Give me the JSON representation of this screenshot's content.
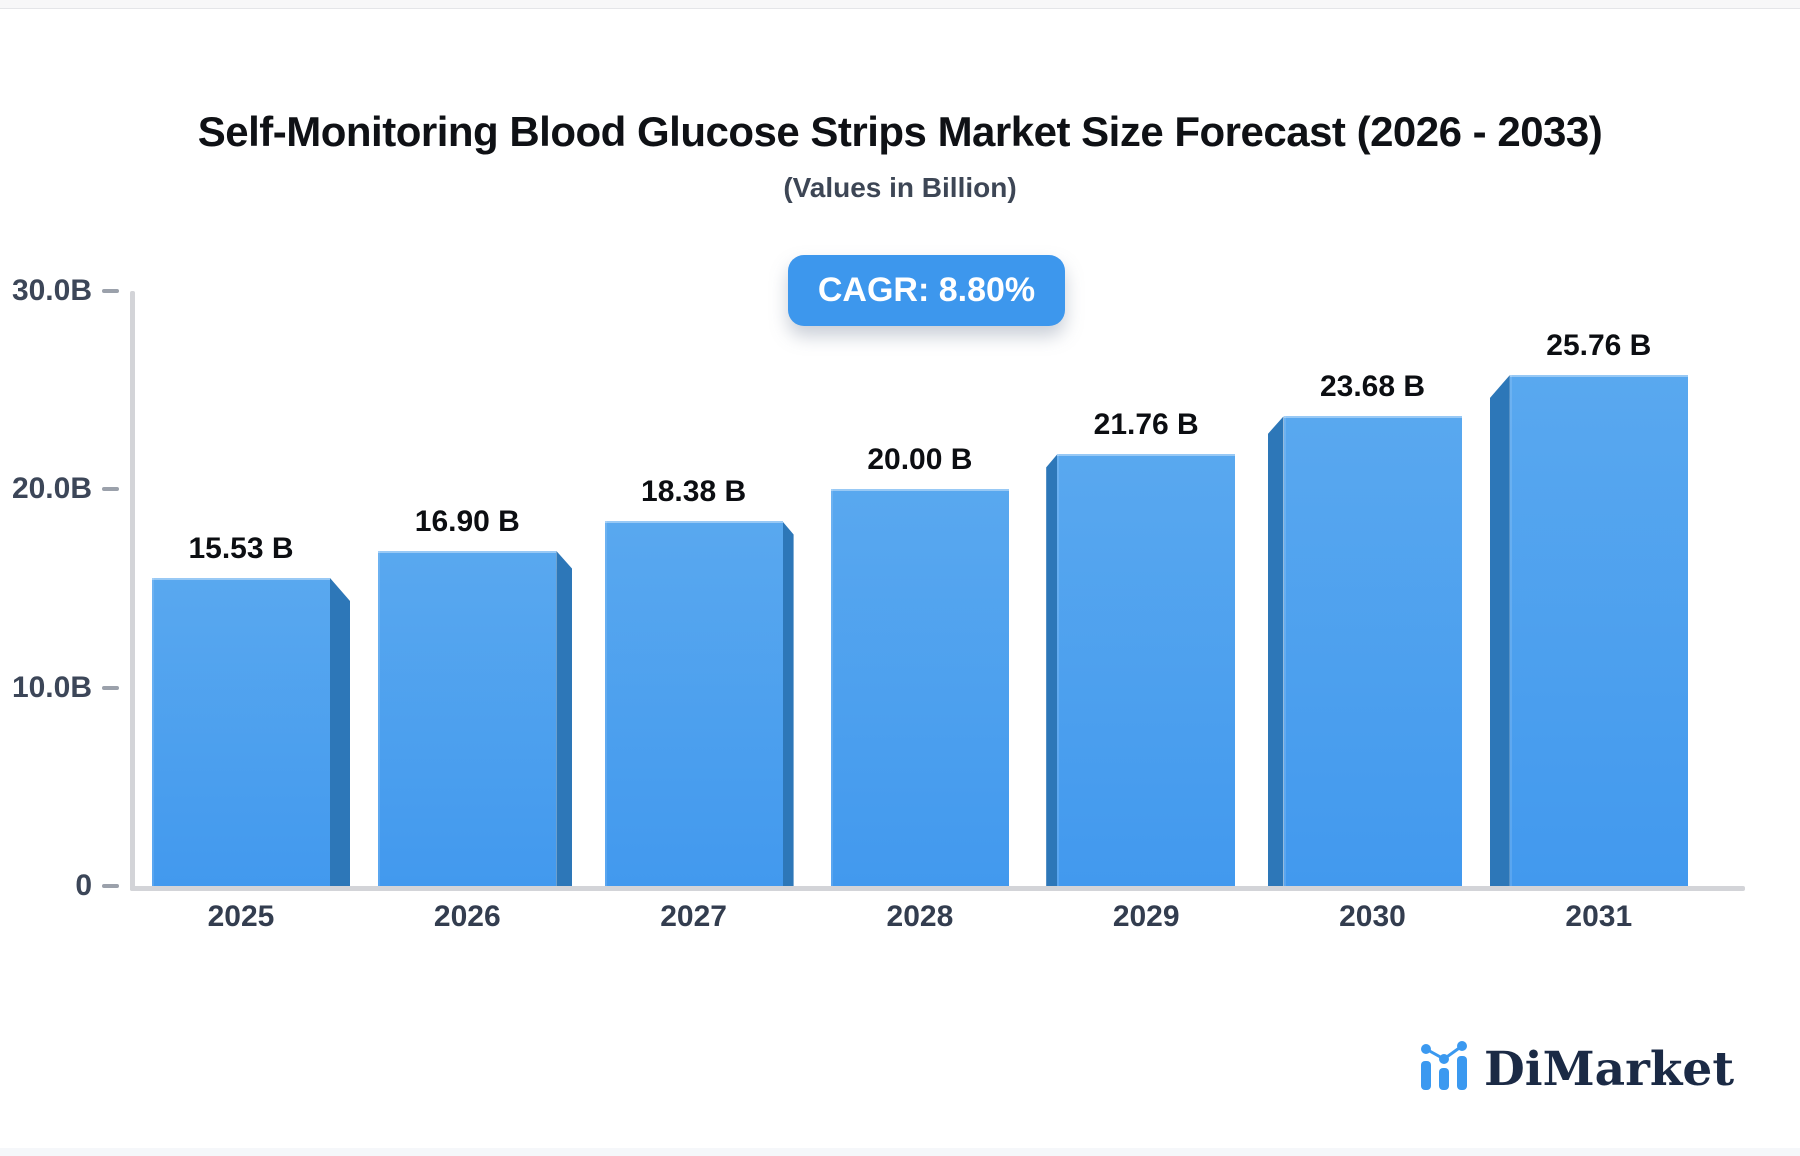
{
  "header": {
    "title": "Self-Monitoring Blood Glucose Strips Market Size Forecast (2026 - 2033)",
    "subtitle": "(Values in Billion)"
  },
  "badge": {
    "label": "CAGR: 8.80%",
    "bg_color": "#3d97ed",
    "text_color": "#ffffff"
  },
  "chart_data": {
    "type": "bar",
    "title": "Self-Monitoring Blood Glucose Strips Market Size Forecast (2026 - 2033)",
    "subtitle": "(Values in Billion)",
    "annotation": "CAGR: 8.80%",
    "categories": [
      "2025",
      "2026",
      "2027",
      "2028",
      "2029",
      "2030",
      "2031"
    ],
    "values": [
      15.53,
      16.9,
      18.38,
      20.0,
      21.76,
      23.68,
      25.76
    ],
    "value_labels": [
      "15.53 B",
      "16.90 B",
      "18.38 B",
      "20.00 B",
      "21.76 B",
      "23.68 B",
      "25.76 B"
    ],
    "xlabel": "",
    "ylabel": "",
    "ylim": [
      0,
      30
    ],
    "yticks": [
      {
        "value": 30,
        "label": "30.0B"
      },
      {
        "value": 20,
        "label": "20.0B"
      },
      {
        "value": 10,
        "label": "10.0B"
      },
      {
        "value": 0,
        "label": "0"
      }
    ],
    "grid": "off",
    "legend": "none",
    "bar_color_top": "#59a8ef",
    "bar_color_bottom": "#4299ee",
    "bar_side_color": "#2d77b8",
    "axis_color": "#d3d4d8",
    "tick_color": "#9ba1ab",
    "tick_label_color": "#3c4658"
  },
  "logo": {
    "text": "DiMarket",
    "text_color": "#1b2a45",
    "icon": "mini-bar-line-chart-icon",
    "icon_color": "#3b99f0"
  }
}
